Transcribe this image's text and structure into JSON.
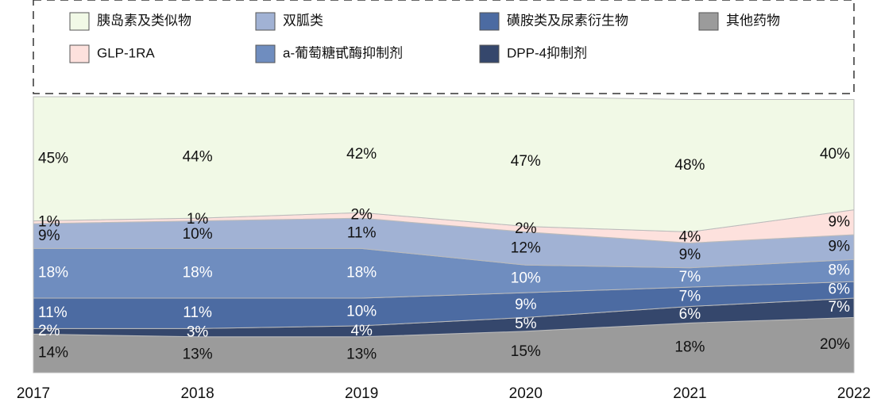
{
  "chart_data": {
    "type": "area",
    "x": [
      "2017",
      "2018",
      "2019",
      "2020",
      "2021",
      "2022"
    ],
    "ylim": [
      0,
      100
    ],
    "series": [
      {
        "name": "其他药物",
        "color": "#9b9b9b",
        "values": [
          14,
          13,
          13,
          15,
          18,
          20
        ],
        "value_labels": [
          "14%",
          "13%",
          "13%",
          "15%",
          "18%",
          "20%"
        ]
      },
      {
        "name": "DPP-4抑制剂",
        "color": "#35476c",
        "values": [
          2,
          3,
          4,
          5,
          6,
          7
        ],
        "value_labels": [
          "2%",
          "3%",
          "4%",
          "5%",
          "6%",
          "7%"
        ]
      },
      {
        "name": "磺胺类及尿素衍生物",
        "color": "#4c6ba2",
        "values": [
          11,
          11,
          10,
          9,
          7,
          6
        ],
        "value_labels": [
          "11%",
          "11%",
          "10%",
          "9%",
          "7%",
          "6%"
        ]
      },
      {
        "name": "a-葡萄糖甙酶抑制剂",
        "color": "#6f8dbf",
        "values": [
          18,
          18,
          18,
          10,
          7,
          8
        ],
        "value_labels": [
          "18%",
          "18%",
          "18%",
          "10%",
          "7%",
          "8%"
        ]
      },
      {
        "name": "双胍类",
        "color": "#a1b2d4",
        "values": [
          9,
          10,
          11,
          12,
          9,
          9
        ],
        "value_labels": [
          "9%",
          "10%",
          "11%",
          "12%",
          "9%",
          "9%"
        ]
      },
      {
        "name": "GLP-1RA",
        "color": "#fde1dd",
        "values": [
          1,
          1,
          2,
          2,
          4,
          9
        ],
        "value_labels": [
          "1%",
          "1%",
          "2%",
          "2%",
          "4%",
          "9%"
        ]
      },
      {
        "name": "胰岛素及类似物",
        "color": "#f1f9e6",
        "values": [
          45,
          44,
          42,
          47,
          48,
          40
        ],
        "value_labels": [
          "45%",
          "44%",
          "42%",
          "47%",
          "48%",
          "40%"
        ]
      }
    ]
  }
}
